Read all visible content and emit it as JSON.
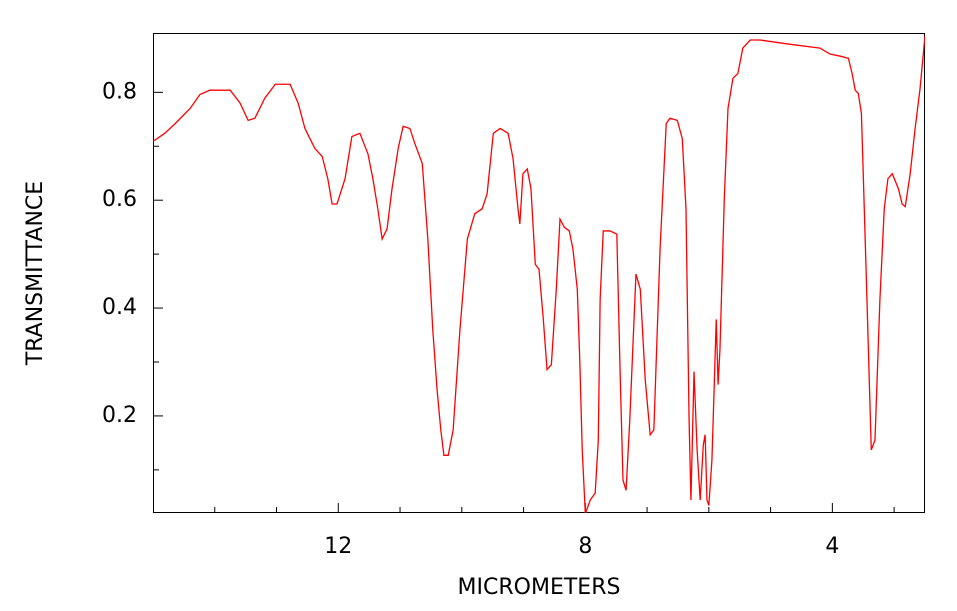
{
  "chart_data": {
    "type": "line",
    "xlabel": "MICROMETERS",
    "ylabel": "TRANSMITTANCE",
    "xlim": [
      15,
      2.5
    ],
    "ylim": [
      0.02,
      0.91
    ],
    "xticks": [
      12,
      8,
      4
    ],
    "yticks": [
      0.8,
      0.6,
      0.4,
      0.2
    ],
    "xminor": [
      14,
      13,
      11,
      10,
      9,
      7,
      6,
      5,
      3
    ],
    "yminor": [
      0.7,
      0.5,
      0.3,
      0.1
    ],
    "grid": false,
    "series": [
      {
        "color": "#ff0000",
        "x": [
          15.0,
          14.81,
          14.64,
          14.4,
          14.24,
          14.08,
          13.75,
          13.59,
          13.46,
          13.35,
          13.19,
          13.02,
          12.78,
          12.65,
          12.54,
          12.38,
          12.26,
          12.17,
          12.1,
          12.02,
          11.89,
          11.78,
          11.65,
          11.52,
          11.44,
          11.36,
          11.29,
          11.21,
          11.13,
          11.03,
          10.95,
          10.84,
          10.76,
          10.64,
          10.55,
          10.47,
          10.4,
          10.34,
          10.29,
          10.22,
          10.14,
          10.03,
          9.91,
          9.79,
          9.67,
          9.59,
          9.49,
          9.38,
          9.25,
          9.17,
          9.09,
          9.06,
          9.01,
          8.94,
          8.88,
          8.81,
          8.75,
          8.68,
          8.62,
          8.55,
          8.47,
          8.41,
          8.34,
          8.26,
          8.2,
          8.13,
          8.09,
          8.05,
          8.0,
          7.92,
          7.84,
          7.79,
          7.76,
          7.71,
          7.6,
          7.49,
          7.44,
          7.39,
          7.34,
          7.28,
          7.18,
          7.11,
          7.03,
          6.95,
          6.89,
          6.79,
          6.69,
          6.63,
          6.51,
          6.43,
          6.37,
          6.32,
          6.29,
          6.24,
          6.19,
          6.14,
          6.09,
          6.06,
          6.03,
          6.0,
          5.95,
          5.91,
          5.88,
          5.85,
          5.82,
          5.75,
          5.69,
          5.61,
          5.53,
          5.45,
          5.33,
          5.17,
          4.68,
          4.2,
          4.04,
          3.87,
          3.74,
          3.68,
          3.63,
          3.58,
          3.53,
          3.5,
          3.44,
          3.37,
          3.31,
          3.23,
          3.16,
          3.1,
          3.03,
          2.93,
          2.87,
          2.82,
          2.74,
          2.66,
          2.58,
          2.5
        ],
        "values": [
          0.709,
          0.724,
          0.742,
          0.77,
          0.796,
          0.804,
          0.804,
          0.78,
          0.748,
          0.752,
          0.789,
          0.815,
          0.815,
          0.78,
          0.733,
          0.696,
          0.681,
          0.64,
          0.593,
          0.593,
          0.64,
          0.718,
          0.724,
          0.686,
          0.64,
          0.584,
          0.528,
          0.547,
          0.621,
          0.696,
          0.737,
          0.733,
          0.705,
          0.668,
          0.528,
          0.36,
          0.248,
          0.174,
          0.127,
          0.127,
          0.174,
          0.36,
          0.528,
          0.575,
          0.584,
          0.612,
          0.724,
          0.733,
          0.724,
          0.677,
          0.584,
          0.556,
          0.649,
          0.658,
          0.621,
          0.481,
          0.472,
          0.379,
          0.286,
          0.295,
          0.435,
          0.565,
          0.55,
          0.543,
          0.509,
          0.435,
          0.304,
          0.137,
          0.019,
          0.044,
          0.057,
          0.155,
          0.416,
          0.543,
          0.543,
          0.537,
          0.295,
          0.081,
          0.062,
          0.193,
          0.463,
          0.435,
          0.267,
          0.165,
          0.174,
          0.509,
          0.742,
          0.752,
          0.748,
          0.714,
          0.584,
          0.193,
          0.044,
          0.282,
          0.137,
          0.044,
          0.146,
          0.165,
          0.044,
          0.034,
          0.118,
          0.267,
          0.379,
          0.258,
          0.323,
          0.602,
          0.77,
          0.826,
          0.835,
          0.882,
          0.897,
          0.897,
          0.889,
          0.882,
          0.871,
          0.867,
          0.863,
          0.835,
          0.804,
          0.798,
          0.761,
          0.649,
          0.416,
          0.137,
          0.155,
          0.416,
          0.584,
          0.64,
          0.649,
          0.621,
          0.593,
          0.588,
          0.649,
          0.733,
          0.807,
          0.905
        ]
      }
    ]
  }
}
